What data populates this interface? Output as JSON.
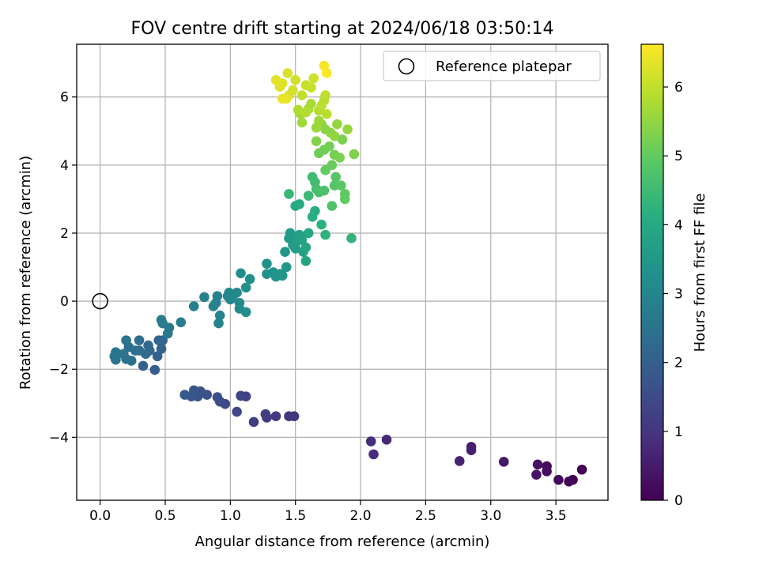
{
  "chart_data": {
    "type": "scatter",
    "title": "FOV centre drift starting at 2024/06/18 03:50:14",
    "xlabel": "Angular distance from reference (arcmin)",
    "ylabel": "Rotation from reference (arcmin)",
    "xlim": [
      -0.18,
      3.9
    ],
    "ylim": [
      -5.85,
      7.55
    ],
    "x_ticks": [
      0.0,
      0.5,
      1.0,
      1.5,
      2.0,
      2.5,
      3.0,
      3.5
    ],
    "x_tick_labels": [
      "0.0",
      "0.5",
      "1.0",
      "1.5",
      "2.0",
      "2.5",
      "3.0",
      "3.5"
    ],
    "y_ticks": [
      -4,
      -2,
      0,
      2,
      4,
      6
    ],
    "y_tick_labels": [
      "−4",
      "−2",
      "0",
      "2",
      "4",
      "6"
    ],
    "grid": true,
    "legend": {
      "position": "top-right",
      "entries": [
        "Reference platepar"
      ]
    },
    "reference_point": {
      "x": 0.0,
      "y": 0.0
    },
    "colorbar": {
      "label": "Hours from first FF file",
      "range": [
        0,
        6.62
      ],
      "ticks": [
        0,
        1,
        2,
        3,
        4,
        5,
        6
      ],
      "tick_labels": [
        "0",
        "1",
        "2",
        "3",
        "4",
        "5",
        "6"
      ],
      "colormap": "viridis"
    },
    "points": [
      {
        "x": 3.7,
        "y": -4.95,
        "c": 0.0
      },
      {
        "x": 3.63,
        "y": -5.25,
        "c": 0.05
      },
      {
        "x": 3.6,
        "y": -5.3,
        "c": 0.1
      },
      {
        "x": 3.52,
        "y": -5.25,
        "c": 0.15
      },
      {
        "x": 3.43,
        "y": -4.85,
        "c": 0.2
      },
      {
        "x": 3.43,
        "y": -5.0,
        "c": 0.25
      },
      {
        "x": 3.36,
        "y": -4.8,
        "c": 0.3
      },
      {
        "x": 3.35,
        "y": -5.1,
        "c": 0.35
      },
      {
        "x": 3.1,
        "y": -4.72,
        "c": 0.45
      },
      {
        "x": 2.85,
        "y": -4.28,
        "c": 0.55
      },
      {
        "x": 2.85,
        "y": -4.38,
        "c": 0.6
      },
      {
        "x": 2.76,
        "y": -4.7,
        "c": 0.65
      },
      {
        "x": 2.2,
        "y": -4.07,
        "c": 0.75
      },
      {
        "x": 2.1,
        "y": -4.5,
        "c": 0.82
      },
      {
        "x": 2.08,
        "y": -4.12,
        "c": 0.88
      },
      {
        "x": 1.49,
        "y": -3.38,
        "c": 1.0
      },
      {
        "x": 1.45,
        "y": -3.38,
        "c": 1.05
      },
      {
        "x": 1.35,
        "y": -3.38,
        "c": 1.1
      },
      {
        "x": 1.28,
        "y": -3.42,
        "c": 1.15
      },
      {
        "x": 1.27,
        "y": -3.32,
        "c": 1.2
      },
      {
        "x": 1.18,
        "y": -3.55,
        "c": 1.25
      },
      {
        "x": 1.12,
        "y": -2.8,
        "c": 1.3
      },
      {
        "x": 1.08,
        "y": -2.78,
        "c": 1.35
      },
      {
        "x": 1.05,
        "y": -3.25,
        "c": 1.4
      },
      {
        "x": 0.96,
        "y": -3.02,
        "c": 1.45
      },
      {
        "x": 0.92,
        "y": -2.95,
        "c": 1.5
      },
      {
        "x": 0.9,
        "y": -2.82,
        "c": 1.55
      },
      {
        "x": 0.82,
        "y": -2.75,
        "c": 1.6
      },
      {
        "x": 0.77,
        "y": -2.65,
        "c": 1.65
      },
      {
        "x": 0.75,
        "y": -2.8,
        "c": 1.7
      },
      {
        "x": 0.72,
        "y": -2.62,
        "c": 1.75
      },
      {
        "x": 0.7,
        "y": -2.8,
        "c": 1.8
      },
      {
        "x": 0.65,
        "y": -2.75,
        "c": 1.85
      },
      {
        "x": 0.42,
        "y": -2.02,
        "c": 1.95
      },
      {
        "x": 0.33,
        "y": -1.9,
        "c": 2.0
      },
      {
        "x": 0.44,
        "y": -1.62,
        "c": 2.05
      },
      {
        "x": 0.47,
        "y": -1.4,
        "c": 2.1
      },
      {
        "x": 0.45,
        "y": -1.15,
        "c": 2.15
      },
      {
        "x": 0.48,
        "y": -1.15,
        "c": 2.18
      },
      {
        "x": 0.38,
        "y": -1.45,
        "c": 2.22
      },
      {
        "x": 0.37,
        "y": -1.3,
        "c": 2.25
      },
      {
        "x": 0.35,
        "y": -1.55,
        "c": 2.28
      },
      {
        "x": 0.3,
        "y": -1.45,
        "c": 2.32
      },
      {
        "x": 0.3,
        "y": -1.15,
        "c": 2.35
      },
      {
        "x": 0.27,
        "y": -1.45,
        "c": 2.38
      },
      {
        "x": 0.24,
        "y": -1.75,
        "c": 2.42
      },
      {
        "x": 0.22,
        "y": -1.35,
        "c": 2.45
      },
      {
        "x": 0.2,
        "y": -1.7,
        "c": 2.48
      },
      {
        "x": 0.2,
        "y": -1.15,
        "c": 2.5
      },
      {
        "x": 0.18,
        "y": -1.55,
        "c": 2.52
      },
      {
        "x": 0.12,
        "y": -1.72,
        "c": 2.55
      },
      {
        "x": 0.12,
        "y": -1.5,
        "c": 2.58
      },
      {
        "x": 0.11,
        "y": -1.62,
        "c": 2.6
      },
      {
        "x": 0.52,
        "y": -0.95,
        "c": 2.65
      },
      {
        "x": 0.53,
        "y": -0.78,
        "c": 2.7
      },
      {
        "x": 0.48,
        "y": -0.65,
        "c": 2.72
      },
      {
        "x": 0.47,
        "y": -0.55,
        "c": 2.74
      },
      {
        "x": 0.62,
        "y": -0.62,
        "c": 2.78
      },
      {
        "x": 0.72,
        "y": -0.15,
        "c": 2.82
      },
      {
        "x": 0.8,
        "y": 0.12,
        "c": 2.85
      },
      {
        "x": 0.87,
        "y": -0.15,
        "c": 2.88
      },
      {
        "x": 0.89,
        "y": -0.05,
        "c": 2.9
      },
      {
        "x": 0.9,
        "y": 0.15,
        "c": 2.92
      },
      {
        "x": 0.91,
        "y": -0.65,
        "c": 2.95
      },
      {
        "x": 0.92,
        "y": -0.42,
        "c": 2.98
      },
      {
        "x": 0.98,
        "y": 0.15,
        "c": 3.0
      },
      {
        "x": 0.99,
        "y": 0.25,
        "c": 3.02
      },
      {
        "x": 1.0,
        "y": 0.05,
        "c": 3.05
      },
      {
        "x": 1.02,
        "y": 0.15,
        "c": 3.08
      },
      {
        "x": 1.05,
        "y": 0.25,
        "c": 3.1
      },
      {
        "x": 1.07,
        "y": -0.05,
        "c": 3.12
      },
      {
        "x": 1.07,
        "y": -0.22,
        "c": 3.15
      },
      {
        "x": 1.12,
        "y": -0.32,
        "c": 3.18
      },
      {
        "x": 1.08,
        "y": 0.82,
        "c": 3.22
      },
      {
        "x": 1.12,
        "y": 0.4,
        "c": 3.25
      },
      {
        "x": 1.15,
        "y": 0.65,
        "c": 3.28
      },
      {
        "x": 1.28,
        "y": 1.1,
        "c": 3.32
      },
      {
        "x": 1.28,
        "y": 0.8,
        "c": 3.35
      },
      {
        "x": 1.33,
        "y": 0.85,
        "c": 3.38
      },
      {
        "x": 1.35,
        "y": 0.72,
        "c": 3.4
      },
      {
        "x": 1.38,
        "y": 0.8,
        "c": 3.43
      },
      {
        "x": 1.4,
        "y": 0.75,
        "c": 3.45
      },
      {
        "x": 1.42,
        "y": 1.45,
        "c": 3.48
      },
      {
        "x": 1.43,
        "y": 1.0,
        "c": 3.5
      },
      {
        "x": 1.45,
        "y": 1.85,
        "c": 3.53
      },
      {
        "x": 1.46,
        "y": 2.0,
        "c": 3.56
      },
      {
        "x": 1.48,
        "y": 1.65,
        "c": 3.6
      },
      {
        "x": 1.5,
        "y": 1.55,
        "c": 3.63
      },
      {
        "x": 1.51,
        "y": 1.75,
        "c": 3.66
      },
      {
        "x": 1.52,
        "y": 1.85,
        "c": 3.7
      },
      {
        "x": 1.53,
        "y": 1.95,
        "c": 3.73
      },
      {
        "x": 1.55,
        "y": 1.8,
        "c": 3.76
      },
      {
        "x": 1.56,
        "y": 1.45,
        "c": 3.8
      },
      {
        "x": 1.58,
        "y": 1.18,
        "c": 3.83
      },
      {
        "x": 1.58,
        "y": 1.58,
        "c": 3.86
      },
      {
        "x": 1.6,
        "y": 2.0,
        "c": 3.9
      },
      {
        "x": 1.5,
        "y": 2.8,
        "c": 4.0
      },
      {
        "x": 1.53,
        "y": 2.85,
        "c": 4.05
      },
      {
        "x": 1.65,
        "y": 2.65,
        "c": 4.1
      },
      {
        "x": 1.63,
        "y": 2.48,
        "c": 4.15
      },
      {
        "x": 1.7,
        "y": 2.25,
        "c": 4.2
      },
      {
        "x": 1.73,
        "y": 1.95,
        "c": 4.25
      },
      {
        "x": 1.93,
        "y": 1.85,
        "c": 4.3
      },
      {
        "x": 1.45,
        "y": 3.15,
        "c": 4.4
      },
      {
        "x": 1.6,
        "y": 3.1,
        "c": 4.45
      },
      {
        "x": 1.63,
        "y": 3.65,
        "c": 4.5
      },
      {
        "x": 1.65,
        "y": 3.5,
        "c": 4.55
      },
      {
        "x": 1.66,
        "y": 3.3,
        "c": 4.6
      },
      {
        "x": 1.68,
        "y": 3.2,
        "c": 4.65
      },
      {
        "x": 1.72,
        "y": 3.25,
        "c": 4.7
      },
      {
        "x": 1.78,
        "y": 2.8,
        "c": 4.75
      },
      {
        "x": 1.8,
        "y": 3.4,
        "c": 4.8
      },
      {
        "x": 1.81,
        "y": 3.65,
        "c": 4.85
      },
      {
        "x": 1.85,
        "y": 3.4,
        "c": 4.9
      },
      {
        "x": 1.88,
        "y": 3.15,
        "c": 4.95
      },
      {
        "x": 1.88,
        "y": 3.0,
        "c": 5.0
      },
      {
        "x": 1.73,
        "y": 3.85,
        "c": 5.05
      },
      {
        "x": 1.78,
        "y": 4.0,
        "c": 5.08
      },
      {
        "x": 1.68,
        "y": 4.35,
        "c": 5.12
      },
      {
        "x": 1.72,
        "y": 4.45,
        "c": 5.15
      },
      {
        "x": 1.76,
        "y": 4.55,
        "c": 5.18
      },
      {
        "x": 1.8,
        "y": 4.3,
        "c": 5.22
      },
      {
        "x": 1.84,
        "y": 4.22,
        "c": 5.25
      },
      {
        "x": 1.86,
        "y": 4.75,
        "c": 5.28
      },
      {
        "x": 1.95,
        "y": 4.32,
        "c": 5.32
      },
      {
        "x": 1.66,
        "y": 4.7,
        "c": 5.35
      },
      {
        "x": 1.7,
        "y": 5.2,
        "c": 5.4
      },
      {
        "x": 1.73,
        "y": 5.05,
        "c": 5.43
      },
      {
        "x": 1.77,
        "y": 4.95,
        "c": 5.46
      },
      {
        "x": 1.8,
        "y": 4.85,
        "c": 5.5
      },
      {
        "x": 1.82,
        "y": 5.2,
        "c": 5.53
      },
      {
        "x": 1.9,
        "y": 5.05,
        "c": 5.56
      },
      {
        "x": 1.66,
        "y": 5.1,
        "c": 5.6
      },
      {
        "x": 1.68,
        "y": 5.3,
        "c": 5.63
      },
      {
        "x": 1.55,
        "y": 5.25,
        "c": 5.67
      },
      {
        "x": 1.54,
        "y": 5.5,
        "c": 5.7
      },
      {
        "x": 1.6,
        "y": 5.65,
        "c": 5.73
      },
      {
        "x": 1.62,
        "y": 5.8,
        "c": 5.76
      },
      {
        "x": 1.52,
        "y": 5.62,
        "c": 5.8
      },
      {
        "x": 1.58,
        "y": 5.55,
        "c": 5.83
      },
      {
        "x": 1.68,
        "y": 5.6,
        "c": 5.86
      },
      {
        "x": 1.72,
        "y": 5.9,
        "c": 5.89
      },
      {
        "x": 1.74,
        "y": 5.5,
        "c": 5.92
      },
      {
        "x": 1.7,
        "y": 5.75,
        "c": 5.95
      },
      {
        "x": 1.73,
        "y": 6.05,
        "c": 5.98
      },
      {
        "x": 1.55,
        "y": 6.05,
        "c": 6.0
      },
      {
        "x": 1.58,
        "y": 6.35,
        "c": 6.05
      },
      {
        "x": 1.62,
        "y": 6.28,
        "c": 6.08
      },
      {
        "x": 1.64,
        "y": 6.55,
        "c": 6.12
      },
      {
        "x": 1.5,
        "y": 6.5,
        "c": 6.15
      },
      {
        "x": 1.48,
        "y": 6.2,
        "c": 6.18
      },
      {
        "x": 1.45,
        "y": 6.05,
        "c": 6.22
      },
      {
        "x": 1.44,
        "y": 6.7,
        "c": 6.25
      },
      {
        "x": 1.4,
        "y": 6.4,
        "c": 6.28
      },
      {
        "x": 1.38,
        "y": 6.3,
        "c": 6.32
      },
      {
        "x": 1.35,
        "y": 6.5,
        "c": 6.35
      },
      {
        "x": 1.4,
        "y": 5.95,
        "c": 6.38
      },
      {
        "x": 1.43,
        "y": 5.95,
        "c": 6.42
      },
      {
        "x": 1.72,
        "y": 6.92,
        "c": 6.55
      },
      {
        "x": 1.74,
        "y": 6.7,
        "c": 6.6
      }
    ]
  }
}
